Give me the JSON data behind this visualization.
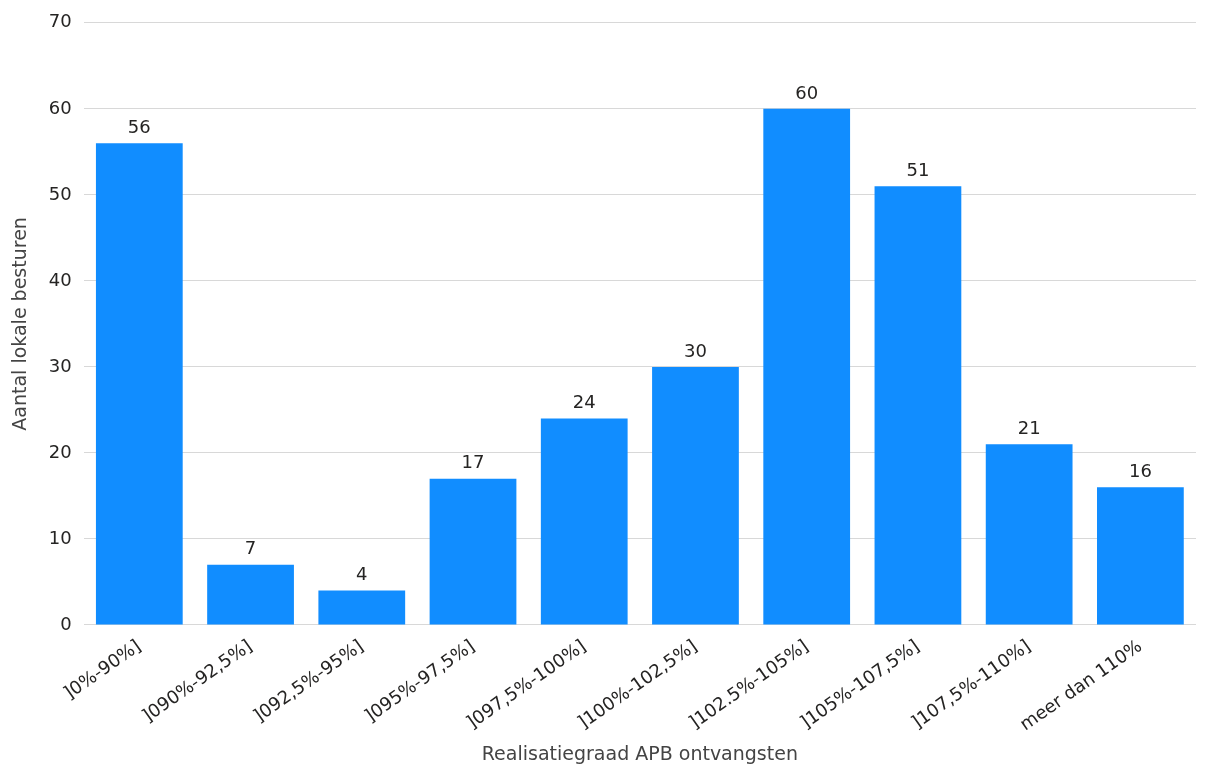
{
  "chart_data": {
    "type": "bar",
    "xlabel": "Realisatiegraad APB ontvangsten",
    "ylabel": "Aantal lokale besturen",
    "categories": [
      "]0%-90%]",
      "]090%-92,5%]",
      "]092,5%-95%]",
      "]095%-97,5%]",
      "]097,5%-100%]",
      "]100%-102,5%]",
      "]102.5%-105%]",
      "]105%-107,5%]",
      "]107,5%-110%]",
      "meer dan 110%"
    ],
    "values": [
      56,
      7,
      4,
      17,
      24,
      30,
      60,
      51,
      21,
      16
    ],
    "color": "#118dff",
    "ylim": [
      0,
      70
    ],
    "yticks": [
      0,
      10,
      20,
      30,
      40,
      50,
      60,
      70
    ],
    "grid": "y",
    "data_labels": true
  }
}
